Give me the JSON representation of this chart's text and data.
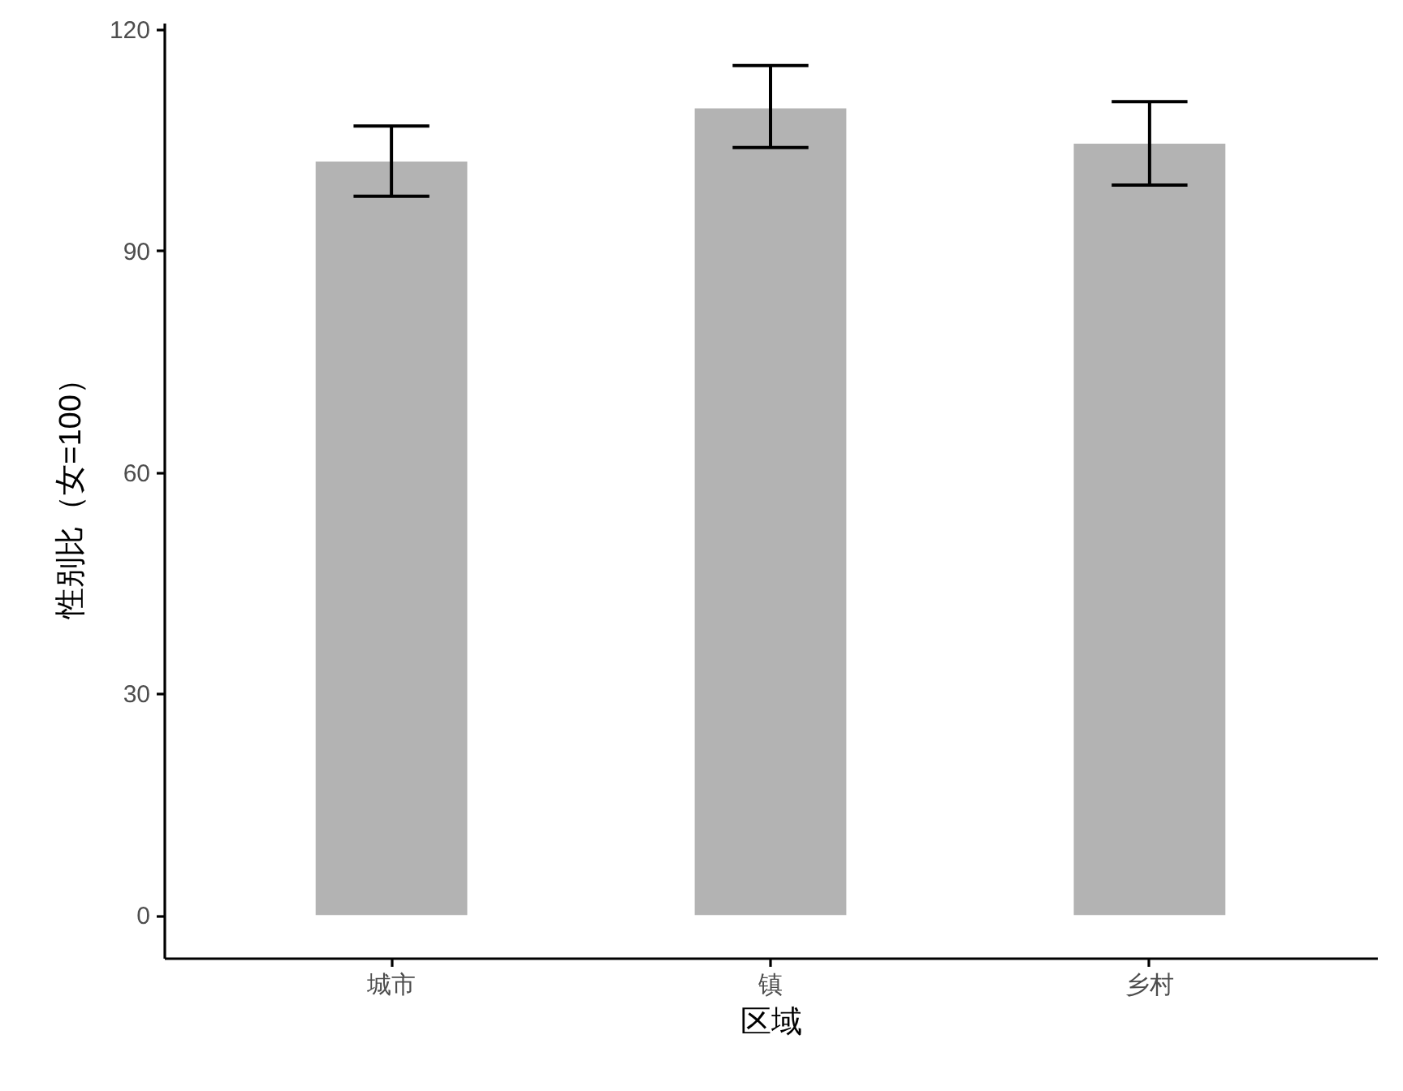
{
  "chart_data": {
    "type": "bar",
    "xlabel": "区域",
    "ylabel": "性别比（女=100）",
    "categories": [
      "城市",
      "镇",
      "乡村"
    ],
    "values": [
      102.1,
      109.3,
      104.5
    ],
    "errors": [
      [
        97.4,
        106.9
      ],
      [
        104.0,
        115.1
      ],
      [
        98.9,
        110.2
      ]
    ],
    "color": "#b3b3b3",
    "ylim": [
      -5.8,
      120.9
    ],
    "yticks": [
      0,
      30,
      60,
      90,
      120
    ],
    "grid": false
  }
}
